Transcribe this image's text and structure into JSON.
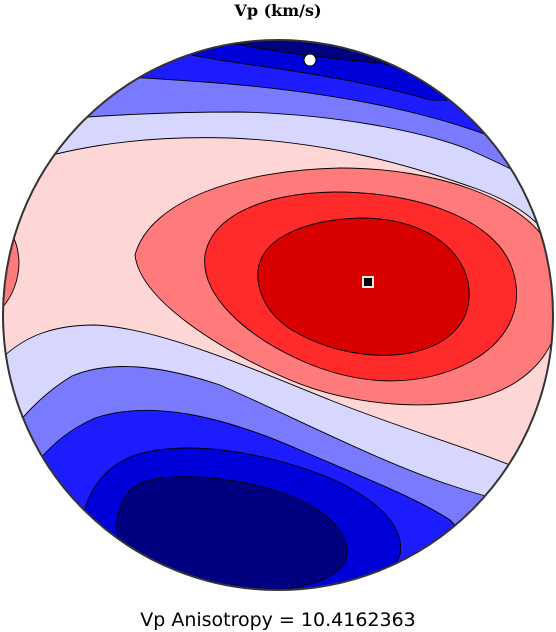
{
  "chart_data": {
    "type": "contour",
    "title": "Vp (km/s)",
    "caption": "Vp Anisotropy = 10.4162363",
    "projection": "stereonet",
    "legend": "none",
    "colorscale": [
      "#000080",
      "#0000d8",
      "#1c1cff",
      "#7a7aff",
      "#d6d6ff",
      "#ffd6d6",
      "#ff7a7a",
      "#ff2a2a",
      "#d90000"
    ],
    "markers": [
      {
        "kind": "max",
        "symbol": "square",
        "location": "right of center"
      },
      {
        "kind": "min",
        "symbol": "circle",
        "location": "top"
      }
    ]
  }
}
